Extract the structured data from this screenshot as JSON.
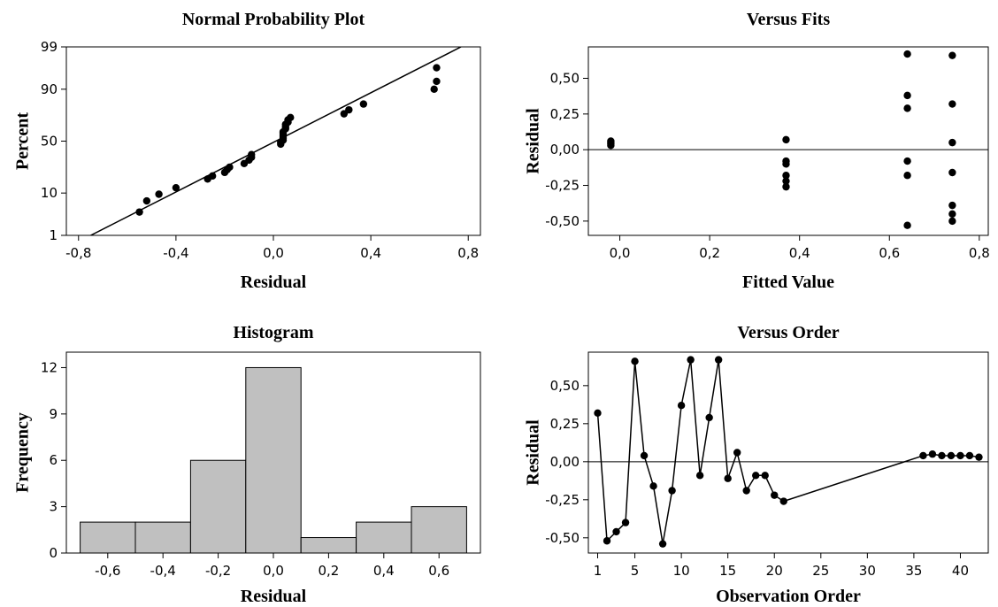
{
  "chart_data": [
    {
      "id": "npp",
      "type": "scatter",
      "title": "Normal Probability Plot",
      "xlabel": "Residual",
      "ylabel": "Percent",
      "xlim": [
        -0.85,
        0.85
      ],
      "xticks": [
        -0.8,
        -0.4,
        0.0,
        0.4,
        0.8
      ],
      "xtick_labels": [
        "-0,8",
        "-0,4",
        "0,0",
        "0,4",
        "0,8"
      ],
      "y_scale": "normal-probability",
      "yticks": [
        1,
        10,
        50,
        90,
        99
      ],
      "ytick_labels": [
        "1",
        "10",
        "50",
        "90",
        "99"
      ],
      "fit_line": [
        [
          -0.75,
          1
        ],
        [
          0.77,
          99
        ]
      ],
      "points": [
        [
          -0.55,
          4
        ],
        [
          -0.52,
          7
        ],
        [
          -0.47,
          9.5
        ],
        [
          -0.4,
          12.5
        ],
        [
          -0.27,
          17.5
        ],
        [
          -0.25,
          19.5
        ],
        [
          -0.2,
          22
        ],
        [
          -0.19,
          24
        ],
        [
          -0.18,
          26
        ],
        [
          -0.12,
          29
        ],
        [
          -0.1,
          32
        ],
        [
          -0.09,
          34.5
        ],
        [
          -0.09,
          37
        ],
        [
          0.03,
          47
        ],
        [
          0.03,
          49
        ],
        [
          0.04,
          51
        ],
        [
          0.04,
          53
        ],
        [
          0.04,
          55
        ],
        [
          0.04,
          57
        ],
        [
          0.04,
          59
        ],
        [
          0.05,
          62
        ],
        [
          0.05,
          64
        ],
        [
          0.05,
          66
        ],
        [
          0.06,
          68
        ],
        [
          0.06,
          70
        ],
        [
          0.07,
          72
        ],
        [
          0.29,
          75
        ],
        [
          0.31,
          78
        ],
        [
          0.37,
          82
        ],
        [
          0.66,
          90
        ],
        [
          0.67,
          93
        ],
        [
          0.67,
          96.5
        ]
      ]
    },
    {
      "id": "fits",
      "type": "scatter",
      "title": "Versus Fits",
      "xlabel": "Fitted Value",
      "ylabel": "Residual",
      "xlim": [
        -0.07,
        0.82
      ],
      "xticks": [
        0.0,
        0.2,
        0.4,
        0.6,
        0.8
      ],
      "xtick_labels": [
        "0,0",
        "0,2",
        "0,4",
        "0,6",
        "0,8"
      ],
      "ylim": [
        -0.6,
        0.72
      ],
      "yticks": [
        -0.5,
        -0.25,
        0.0,
        0.25,
        0.5
      ],
      "ytick_labels": [
        "-0,50",
        "-0,25",
        "0,00",
        "0,25",
        "0,50"
      ],
      "ref_line": 0,
      "points": [
        [
          -0.02,
          0.03
        ],
        [
          -0.02,
          0.04
        ],
        [
          -0.02,
          0.05
        ],
        [
          -0.02,
          0.06
        ],
        [
          0.37,
          0.07
        ],
        [
          0.37,
          -0.08
        ],
        [
          0.37,
          -0.1
        ],
        [
          0.37,
          -0.18
        ],
        [
          0.37,
          -0.22
        ],
        [
          0.37,
          -0.26
        ],
        [
          0.64,
          0.67
        ],
        [
          0.64,
          0.38
        ],
        [
          0.64,
          0.29
        ],
        [
          0.64,
          -0.08
        ],
        [
          0.64,
          -0.18
        ],
        [
          0.64,
          -0.53
        ],
        [
          0.74,
          0.66
        ],
        [
          0.74,
          0.32
        ],
        [
          0.74,
          0.05
        ],
        [
          0.74,
          -0.16
        ],
        [
          0.74,
          -0.39
        ],
        [
          0.74,
          -0.45
        ],
        [
          0.74,
          -0.5
        ]
      ]
    },
    {
      "id": "hist",
      "type": "bar",
      "title": "Histogram",
      "xlabel": "Residual",
      "ylabel": "Frequency",
      "xlim": [
        -0.75,
        0.75
      ],
      "xticks": [
        -0.6,
        -0.4,
        -0.2,
        0.0,
        0.2,
        0.4,
        0.6
      ],
      "xtick_labels": [
        "-0,6",
        "-0,4",
        "-0,2",
        "0,0",
        "0,2",
        "0,4",
        "0,6"
      ],
      "ylim": [
        0,
        13
      ],
      "yticks": [
        0,
        3,
        6,
        9,
        12
      ],
      "ytick_labels": [
        "0",
        "3",
        "6",
        "9",
        "12"
      ],
      "bin_edges": [
        -0.7,
        -0.5,
        -0.3,
        -0.1,
        0.1,
        0.3,
        0.5,
        0.7
      ],
      "values": [
        2,
        2,
        6,
        12,
        1,
        2,
        3
      ]
    },
    {
      "id": "order",
      "type": "line",
      "title": "Versus Order",
      "xlabel": "Observation Order",
      "ylabel": "Residual",
      "xlim": [
        0,
        43
      ],
      "xticks": [
        1,
        5,
        10,
        15,
        20,
        25,
        30,
        35,
        40
      ],
      "xtick_labels": [
        "1",
        "5",
        "10",
        "15",
        "20",
        "25",
        "30",
        "35",
        "40"
      ],
      "ylim": [
        -0.6,
        0.72
      ],
      "yticks": [
        -0.5,
        -0.25,
        0.0,
        0.25,
        0.5
      ],
      "ytick_labels": [
        "-0,50",
        "-0,25",
        "0,00",
        "0,25",
        "0,50"
      ],
      "ref_line": 0,
      "x": [
        1,
        2,
        3,
        4,
        5,
        6,
        7,
        8,
        9,
        10,
        11,
        12,
        13,
        14,
        15,
        16,
        17,
        18,
        19,
        20,
        21,
        36,
        37,
        38,
        39,
        40,
        41,
        42
      ],
      "y": [
        0.32,
        -0.52,
        -0.46,
        -0.4,
        0.66,
        0.04,
        -0.16,
        -0.54,
        -0.19,
        0.37,
        0.67,
        -0.09,
        0.29,
        0.67,
        -0.11,
        0.06,
        -0.19,
        -0.09,
        -0.09,
        -0.22,
        -0.26,
        0.04,
        0.05,
        0.04,
        0.04,
        0.04,
        0.04,
        0.03
      ]
    }
  ]
}
